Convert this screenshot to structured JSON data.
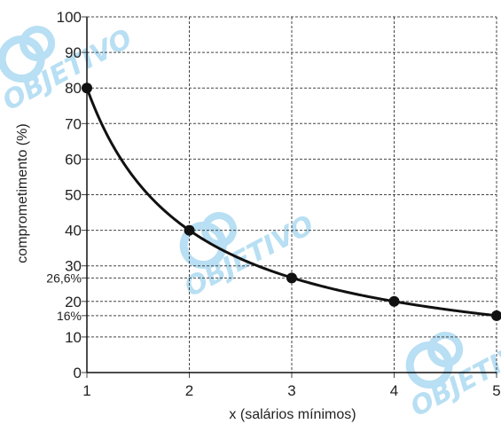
{
  "chart_data": {
    "type": "line",
    "xlabel": "x (salários mínimos)",
    "ylabel": "comprometimento (%)",
    "xlim": [
      1,
      5
    ],
    "ylim": [
      0,
      100
    ],
    "grid": true,
    "x_ticks": [
      "1",
      "2",
      "3",
      "4",
      "5"
    ],
    "y_ticks": [
      {
        "value": 0,
        "label": "0"
      },
      {
        "value": 10,
        "label": "10"
      },
      {
        "value": 16,
        "label": "16%"
      },
      {
        "value": 20,
        "label": "20"
      },
      {
        "value": 26.6,
        "label": "26,6%"
      },
      {
        "value": 30,
        "label": "30"
      },
      {
        "value": 40,
        "label": "40"
      },
      {
        "value": 50,
        "label": "50"
      },
      {
        "value": 60,
        "label": "60"
      },
      {
        "value": 70,
        "label": "70"
      },
      {
        "value": 80,
        "label": "80"
      },
      {
        "value": 90,
        "label": "90"
      },
      {
        "value": 100,
        "label": "100"
      }
    ],
    "points": [
      {
        "x": 1,
        "y": 80
      },
      {
        "x": 2,
        "y": 40
      },
      {
        "x": 3,
        "y": 26.6
      },
      {
        "x": 4,
        "y": 20
      },
      {
        "x": 5,
        "y": 16
      }
    ],
    "curve": "y = 80 / x",
    "line_color": "#111111",
    "grid_color": "#444444"
  },
  "watermark": {
    "text": "OBJETIVO",
    "color": "#7fc6ea"
  }
}
